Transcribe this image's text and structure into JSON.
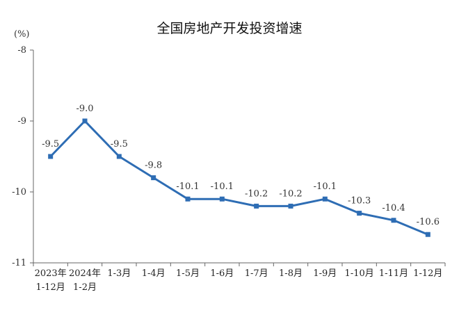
{
  "chart_data": {
    "type": "line",
    "title": "全国房地产开发投资增速",
    "unit": "(%)",
    "categories": [
      [
        "2023年",
        "1-12月"
      ],
      [
        "2024年",
        "1-2月"
      ],
      [
        "1-3月"
      ],
      [
        "1-4月"
      ],
      [
        "1-5月"
      ],
      [
        "1-6月"
      ],
      [
        "1-7月"
      ],
      [
        "1-8月"
      ],
      [
        "1-9月"
      ],
      [
        "1-10月"
      ],
      [
        "1-11月"
      ],
      [
        "1-12月"
      ]
    ],
    "values": [
      -9.5,
      -9.0,
      -9.5,
      -9.8,
      -10.1,
      -10.1,
      -10.2,
      -10.2,
      -10.1,
      -10.3,
      -10.4,
      -10.6
    ],
    "ylim": [
      -11,
      -8
    ],
    "yticks": [
      -8,
      -9,
      -10,
      -11
    ],
    "grid": false,
    "line_color": "#2e6db4"
  }
}
